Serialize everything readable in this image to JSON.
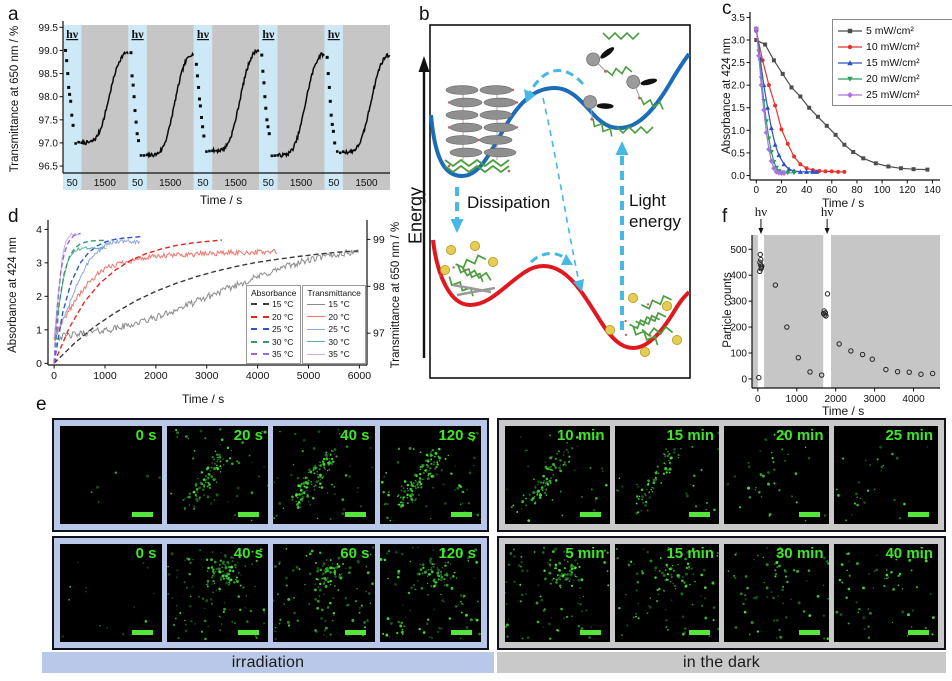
{
  "figure": {
    "panel_labels": {
      "a": "a",
      "b": "b",
      "c": "c",
      "d": "d",
      "e": "e",
      "f": "f"
    }
  },
  "panel_b": {
    "energy_label": "Energy",
    "dissipation_label": "Dissipation",
    "light_energy_label": "Light energy",
    "curve_top_color": "#1b6db8",
    "curve_bottom_color": "#e01820",
    "arrow_color": "#45b8e6"
  },
  "panel_e": {
    "caption_left": "irradiation",
    "caption_right": "in the dark",
    "colors": {
      "irradiation_bg": "#b9c8e8",
      "dark_bg": "#c9c9c9",
      "label_green": "#3ee627"
    },
    "rows": [
      {
        "cluster": "streak",
        "frames": [
          {
            "label": "0 s",
            "dots": 6,
            "cluster": 0
          },
          {
            "label": "20 s",
            "dots": 38,
            "cluster": 85
          },
          {
            "label": "40 s",
            "dots": 48,
            "cluster": 105
          },
          {
            "label": "120 s",
            "dots": 58,
            "cluster": 115
          },
          {
            "label": "10 min",
            "dots": 34,
            "cluster": 75
          },
          {
            "label": "15 min",
            "dots": 28,
            "cluster": 55
          },
          {
            "label": "20 min",
            "dots": 24,
            "cluster": 16
          },
          {
            "label": "25 min",
            "dots": 18,
            "cluster": 10
          }
        ]
      },
      {
        "cluster": "blob",
        "frames": [
          {
            "label": "0 s",
            "dots": 14,
            "cluster": 0
          },
          {
            "label": "40 s",
            "dots": 95,
            "cluster": 65
          },
          {
            "label": "60 s",
            "dots": 90,
            "cluster": 58
          },
          {
            "label": "120 s",
            "dots": 100,
            "cluster": 48
          },
          {
            "label": "5 min",
            "dots": 85,
            "cluster": 55
          },
          {
            "label": "15 min",
            "dots": 75,
            "cluster": 32
          },
          {
            "label": "30 min",
            "dots": 60,
            "cluster": 12
          },
          {
            "label": "40 min",
            "dots": 52,
            "cluster": 8
          }
        ]
      }
    ]
  },
  "chart_data": [
    {
      "id": "a",
      "type": "line",
      "xlabel": "Time / s",
      "ylabel": "Transmittance at 650 nm / %",
      "ylim": [
        96.35,
        99.55
      ],
      "yticks": [
        96.5,
        97.0,
        97.5,
        98.0,
        98.5,
        99.0,
        99.5
      ],
      "cycle_tick_labels": [
        "50",
        "1500"
      ],
      "light_label": "hν",
      "band_colors": {
        "irradiation": "#cdе8f6",
        "irradiation_fix": "#cde8f6",
        "dark": "#c6c6c6"
      },
      "cycles": [
        {
          "base": 97.0,
          "drop": [
            99.0,
            98.78,
            98.5,
            98.2,
            98.05,
            97.9,
            97.6,
            97.38
          ],
          "rise_end": 98.95
        },
        {
          "base": 96.73,
          "drop": [
            98.95,
            98.45,
            98.25,
            98.0,
            97.7,
            97.45,
            97.2,
            97.05
          ],
          "rise_end": 98.92
        },
        {
          "base": 96.83,
          "drop": [
            98.7,
            98.45,
            98.2,
            97.95,
            97.8,
            97.55,
            97.35,
            97.15
          ],
          "rise_end": 99.0
        },
        {
          "base": 96.73,
          "drop": [
            98.9,
            98.55,
            98.3,
            98.0,
            97.75,
            97.5,
            97.35,
            97.2
          ],
          "rise_end": 98.92
        },
        {
          "base": 96.8,
          "drop": [
            98.85,
            98.5,
            98.2,
            97.9,
            97.6,
            97.4,
            97.25,
            97.0
          ],
          "rise_end": 98.9
        }
      ],
      "rise_profile": [
        [
          0,
          0
        ],
        [
          0.08,
          0.002
        ],
        [
          0.16,
          0.005
        ],
        [
          0.24,
          0.02
        ],
        [
          0.32,
          0.06
        ],
        [
          0.4,
          0.14
        ],
        [
          0.48,
          0.27
        ],
        [
          0.56,
          0.44
        ],
        [
          0.64,
          0.62
        ],
        [
          0.72,
          0.78
        ],
        [
          0.8,
          0.9
        ],
        [
          0.88,
          0.97
        ],
        [
          0.94,
          1.0
        ],
        [
          1,
          0.99
        ]
      ]
    },
    {
      "id": "c",
      "type": "scatter",
      "xlabel": "Time / s",
      "ylabel": "Absorbance at 424 nm",
      "xlim": [
        -5,
        146
      ],
      "xticks": [
        0,
        20,
        40,
        60,
        80,
        100,
        120,
        140
      ],
      "ylim": [
        -0.1,
        3.62
      ],
      "yticks": [
        0.0,
        0.5,
        1.0,
        1.5,
        2.0,
        2.5,
        3.0,
        3.5
      ],
      "legend_position": "top-right",
      "series": [
        {
          "name": "5 mW/cm²",
          "color": "#4d4d4d",
          "marker": "square",
          "x": [
            0,
            7,
            14,
            21,
            28,
            35,
            42,
            49,
            56,
            63,
            70,
            77,
            85,
            95,
            105,
            115,
            125,
            136
          ],
          "y": [
            3.0,
            2.9,
            2.55,
            2.25,
            1.95,
            1.75,
            1.5,
            1.3,
            1.1,
            0.9,
            0.68,
            0.52,
            0.38,
            0.27,
            0.2,
            0.16,
            0.14,
            0.13
          ]
        },
        {
          "name": "10 mW/cm²",
          "color": "#e8312a",
          "marker": "circle",
          "x": [
            0,
            5,
            10,
            15,
            20,
            25,
            30,
            35,
            40,
            45,
            50,
            55,
            60,
            65,
            70
          ],
          "y": [
            3.2,
            2.55,
            2.0,
            1.55,
            1.02,
            0.7,
            0.42,
            0.25,
            0.16,
            0.12,
            0.1,
            0.09,
            0.09,
            0.08,
            0.08
          ]
        },
        {
          "name": "15 mW/cm²",
          "color": "#2b50c8",
          "marker": "triangle-up",
          "x": [
            0,
            3,
            6,
            9,
            12,
            15,
            18,
            22,
            26,
            30,
            35,
            40,
            45,
            48
          ],
          "y": [
            3.25,
            2.6,
            2.0,
            1.5,
            1.05,
            0.68,
            0.45,
            0.25,
            0.14,
            0.1,
            0.08,
            0.08,
            0.08,
            0.08
          ]
        },
        {
          "name": "20 mW/cm²",
          "color": "#27a05e",
          "marker": "triangle-down",
          "x": [
            0,
            2,
            4,
            6,
            8,
            10,
            12,
            14,
            16,
            18,
            21,
            25,
            30
          ],
          "y": [
            3.25,
            2.75,
            2.15,
            1.65,
            1.2,
            0.82,
            0.52,
            0.3,
            0.17,
            0.1,
            0.07,
            0.06,
            0.06
          ]
        },
        {
          "name": "25 mW/cm²",
          "color": "#a973e0",
          "marker": "diamond",
          "x": [
            0,
            2,
            4,
            6,
            8,
            10,
            12,
            14,
            16,
            18,
            20,
            22
          ],
          "y": [
            3.25,
            2.65,
            2.0,
            1.45,
            0.95,
            0.58,
            0.32,
            0.16,
            0.08,
            0.06,
            0.05,
            0.05
          ]
        }
      ]
    },
    {
      "id": "d",
      "type": "line",
      "xlabel": "Time / s",
      "ylabel_left": "Absorbance at 424 nm",
      "ylabel_right": "Transmittance at 650 nm / %",
      "xlim": [
        -120,
        6150
      ],
      "xticks": [
        0,
        1000,
        2000,
        3000,
        4000,
        5000,
        6000
      ],
      "ylim_left": [
        -0.05,
        4.1
      ],
      "yticks_left": [
        0,
        1,
        2,
        3,
        4
      ],
      "yticks_right": [
        97,
        98,
        99
      ],
      "legend": {
        "absorbance_title": "Absorbance",
        "transmittance_title": "Transmittance",
        "temps": [
          "15 °C",
          "20 °C",
          "25 °C",
          "30 °C",
          "35 °C"
        ],
        "abs_colors": [
          "#3c3c3c",
          "#e02424",
          "#3056c8",
          "#2f9e62",
          "#9a66d8"
        ],
        "trans_colors": [
          "#8c8c8c",
          "#f0766e",
          "#8fa8e0",
          "#57b0a8",
          "#c9aee8"
        ]
      },
      "series": [
        {
          "temp": "15 °C",
          "abs_x": [
            0,
            400,
            800,
            1200,
            1600,
            2000,
            2400,
            2800,
            3200,
            3600,
            4000,
            4400,
            4800,
            5200,
            5600,
            6000
          ],
          "abs_y": [
            0,
            0.6,
            1.1,
            1.51,
            1.86,
            2.15,
            2.39,
            2.59,
            2.76,
            2.9,
            3.02,
            3.11,
            3.19,
            3.26,
            3.32,
            3.36
          ],
          "tr_x": [
            0,
            300,
            600,
            900,
            1200,
            1500,
            1800,
            2100,
            2400,
            2700,
            3000,
            3300,
            3600,
            3900,
            4200,
            4500,
            4800,
            5100,
            5400,
            5700,
            6000
          ],
          "tr_y": [
            96.9,
            96.95,
            97.0,
            97.05,
            97.1,
            97.18,
            97.27,
            97.37,
            97.5,
            97.63,
            97.77,
            97.9,
            98.03,
            98.16,
            98.28,
            98.4,
            98.5,
            98.58,
            98.65,
            98.7,
            98.75
          ],
          "noise": 0.1
        },
        {
          "temp": "20 °C",
          "abs_x": [
            0,
            300,
            600,
            900,
            1200,
            1500,
            1800,
            2100,
            2400,
            2700,
            3000,
            3300
          ],
          "abs_y": [
            0,
            1.07,
            1.84,
            2.39,
            2.78,
            3.07,
            3.27,
            3.41,
            3.52,
            3.59,
            3.64,
            3.68
          ],
          "tr_x": [
            0,
            220,
            440,
            660,
            880,
            1100,
            1320,
            1540,
            1760,
            1980,
            2200,
            2420,
            2640,
            2860,
            3080,
            3300,
            3520,
            3740,
            3960,
            4180,
            4400
          ],
          "tr_y": [
            96.9,
            97.35,
            97.75,
            98.05,
            98.28,
            98.42,
            98.5,
            98.56,
            98.6,
            98.63,
            98.65,
            98.67,
            98.68,
            98.69,
            98.7,
            98.71,
            98.72,
            98.72,
            98.73,
            98.73,
            98.74
          ],
          "noise": 0.08
        },
        {
          "temp": "25 °C",
          "abs_x": [
            0,
            170,
            340,
            510,
            680,
            850,
            1020,
            1190,
            1360,
            1530,
            1700
          ],
          "abs_y": [
            0,
            1.53,
            2.44,
            2.99,
            3.31,
            3.51,
            3.63,
            3.7,
            3.74,
            3.76,
            3.78
          ],
          "tr_x": [
            0,
            100,
            200,
            300,
            400,
            500,
            600,
            700,
            800,
            900,
            1000,
            1100,
            1200,
            1300,
            1400,
            1500,
            1600,
            1700
          ],
          "tr_y": [
            96.9,
            97.1,
            97.35,
            97.62,
            97.9,
            98.15,
            98.38,
            98.55,
            98.68,
            98.78,
            98.88,
            98.92,
            98.95,
            98.95,
            98.95,
            98.95,
            98.95,
            98.95
          ],
          "noise": 0.06
        },
        {
          "temp": "30 °C",
          "abs_x": [
            0,
            100,
            200,
            300,
            400,
            500,
            600,
            700,
            800,
            900,
            1000
          ],
          "abs_y": [
            0,
            1.79,
            2.71,
            3.18,
            3.43,
            3.55,
            3.61,
            3.65,
            3.66,
            3.67,
            3.67
          ],
          "tr_x": [
            0,
            75,
            150,
            225,
            300,
            375,
            450,
            525,
            600,
            675,
            750,
            825,
            900,
            975,
            1050
          ],
          "tr_y": [
            96.9,
            97.45,
            97.95,
            98.35,
            98.6,
            98.72,
            98.78,
            98.8,
            98.82,
            98.82,
            98.82,
            98.8,
            98.82,
            98.81,
            98.82
          ],
          "noise": 0.05
        },
        {
          "temp": "35 °C",
          "abs_x": [
            0,
            65,
            130,
            195,
            260,
            325,
            390,
            455,
            520
          ],
          "abs_y": [
            0,
            1.75,
            2.72,
            3.25,
            3.55,
            3.72,
            3.81,
            3.86,
            3.88
          ],
          "tr_x": [
            0,
            40,
            80,
            120,
            160,
            200,
            240,
            280,
            320,
            360,
            400,
            440,
            480,
            520
          ],
          "tr_y": [
            96.9,
            97.3,
            97.75,
            98.2,
            98.6,
            98.85,
            99.0,
            99.05,
            99.1,
            99.1,
            99.1,
            99.08,
            99.1,
            99.1
          ],
          "noise": 0.05
        }
      ]
    },
    {
      "id": "f",
      "type": "scatter",
      "xlabel": "Time / s",
      "ylabel": "Particle counts",
      "xlim": [
        -150,
        4680
      ],
      "xticks": [
        0,
        1000,
        2000,
        3000,
        4000
      ],
      "ylim": [
        -35,
        555
      ],
      "yticks": [
        0,
        100,
        200,
        300,
        400,
        500
      ],
      "light_label": "hν",
      "irradiation_bands": [
        [
          0,
          160
        ],
        [
          1680,
          1880
        ]
      ],
      "band_colors": {
        "irradiation": "#ffffff",
        "dark": "#c6c6c6"
      },
      "points": [
        [
          25,
          5
        ],
        [
          50,
          415
        ],
        [
          55,
          450
        ],
        [
          62,
          480
        ],
        [
          68,
          440
        ],
        [
          75,
          460
        ],
        [
          82,
          425
        ],
        [
          90,
          430
        ],
        [
          100,
          435
        ],
        [
          450,
          362
        ],
        [
          745,
          200
        ],
        [
          1040,
          82
        ],
        [
          1340,
          27
        ],
        [
          1640,
          15
        ],
        [
          1690,
          252
        ],
        [
          1705,
          262
        ],
        [
          1720,
          247
        ],
        [
          1735,
          255
        ],
        [
          1750,
          243
        ],
        [
          1790,
          328
        ],
        [
          2090,
          135
        ],
        [
          2390,
          108
        ],
        [
          2690,
          94
        ],
        [
          2940,
          76
        ],
        [
          3290,
          36
        ],
        [
          3590,
          28
        ],
        [
          3890,
          26
        ],
        [
          4190,
          18
        ],
        [
          4490,
          21
        ]
      ]
    }
  ]
}
